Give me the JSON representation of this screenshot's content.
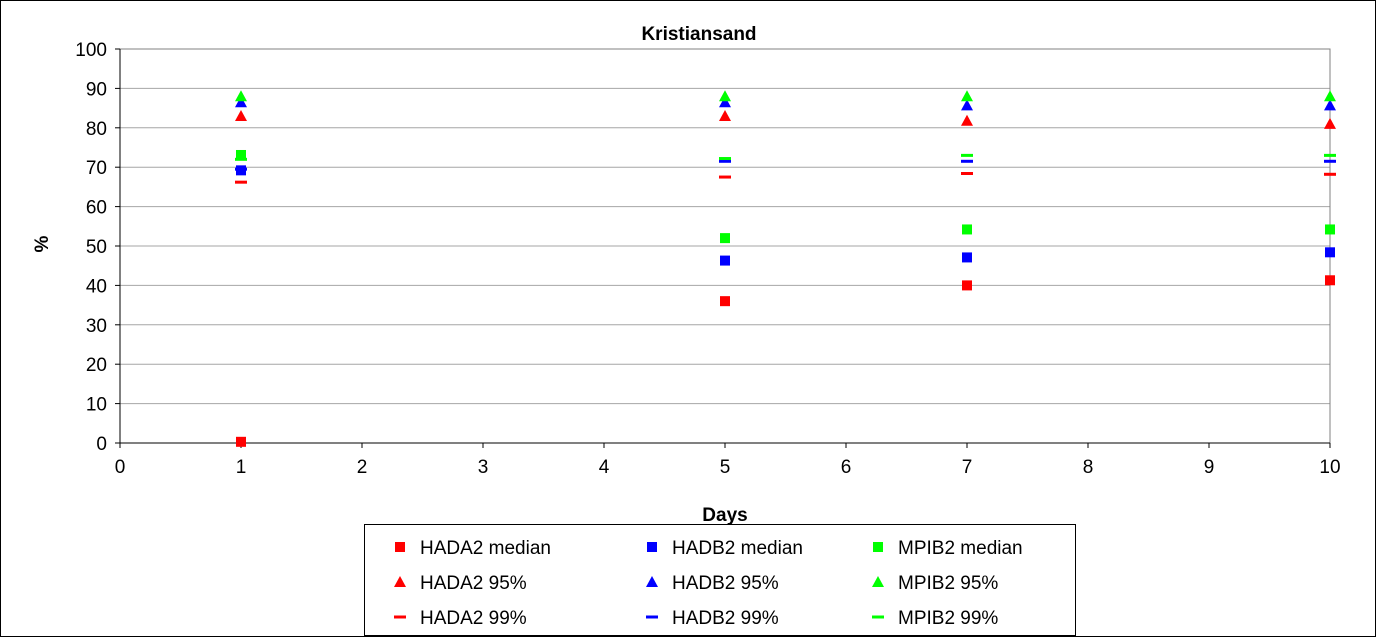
{
  "chart_data": {
    "type": "scatter",
    "title": "Kristiansand",
    "xlabel": "Days",
    "ylabel": "%",
    "xlim": [
      0,
      10
    ],
    "ylim": [
      0,
      100
    ],
    "xticks": [
      0,
      1,
      2,
      3,
      4,
      5,
      6,
      7,
      8,
      9,
      10
    ],
    "yticks": [
      0,
      10,
      20,
      30,
      40,
      50,
      60,
      70,
      80,
      90,
      100
    ],
    "grid": "horizontal",
    "legend_position": "bottom",
    "series": [
      {
        "name": "HADA2 median",
        "marker": "square",
        "color": "#ff0000",
        "x": [
          1,
          5,
          7,
          10
        ],
        "y": [
          0.3,
          36,
          40,
          41.3
        ]
      },
      {
        "name": "HADB2 median",
        "marker": "square",
        "color": "#0000ff",
        "x": [
          1,
          5,
          7,
          10
        ],
        "y": [
          69.2,
          46.3,
          47.1,
          48.4
        ]
      },
      {
        "name": "MPIB2 median",
        "marker": "square",
        "color": "#00ff00",
        "x": [
          1,
          5,
          7,
          10
        ],
        "y": [
          73.1,
          52,
          54.2,
          54.2
        ]
      },
      {
        "name": "HADA2 95%",
        "marker": "triangle",
        "color": "#ff0000",
        "x": [
          1,
          5,
          7,
          10
        ],
        "y": [
          83,
          83,
          81.8,
          81
        ]
      },
      {
        "name": "HADB2 95%",
        "marker": "triangle",
        "color": "#0000ff",
        "x": [
          1,
          5,
          7,
          10
        ],
        "y": [
          86.5,
          86.5,
          85.7,
          85.7
        ]
      },
      {
        "name": "MPIB2 95%",
        "marker": "triangle",
        "color": "#00ff00",
        "x": [
          1,
          5,
          7,
          10
        ],
        "y": [
          88,
          88,
          88,
          88
        ]
      },
      {
        "name": "HADA2 99%",
        "marker": "dash",
        "color": "#ff0000",
        "x": [
          1,
          5,
          7,
          10
        ],
        "y": [
          66.2,
          67.5,
          68.4,
          68.2
        ]
      },
      {
        "name": "HADB2 99%",
        "marker": "dash",
        "color": "#0000ff",
        "x": [
          1,
          5,
          7,
          10
        ],
        "y": [
          69.5,
          71.5,
          71.5,
          71.5
        ]
      },
      {
        "name": "MPIB2 99%",
        "marker": "dash",
        "color": "#00ff00",
        "x": [
          1,
          5,
          7,
          10
        ],
        "y": [
          72,
          72.2,
          73,
          73
        ]
      }
    ]
  }
}
